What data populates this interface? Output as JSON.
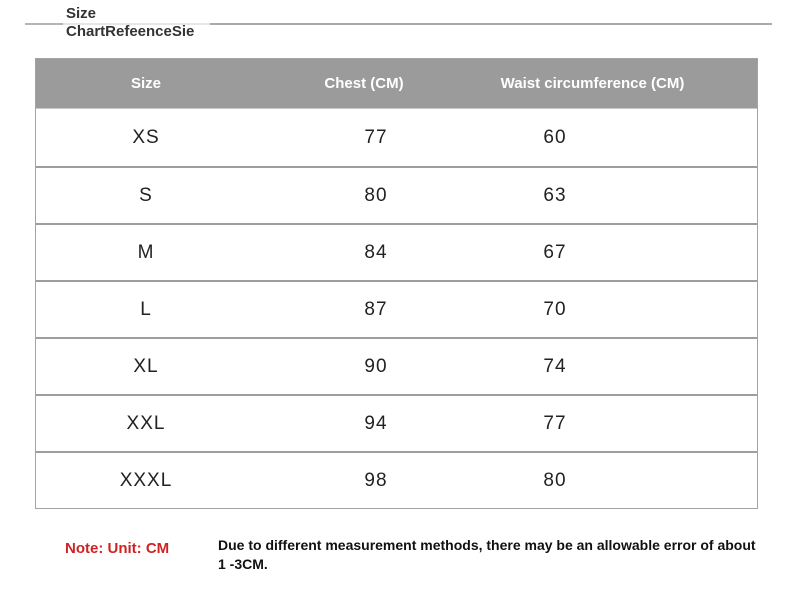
{
  "title": {
    "line1": "Size",
    "line2": "ChartRefeenceSie"
  },
  "table": {
    "headers": [
      "Size",
      "Chest (CM)",
      "Waist circumference (CM)"
    ],
    "rows": [
      {
        "size": "XS",
        "chest": "77",
        "waist": "60"
      },
      {
        "size": "S",
        "chest": "80",
        "waist": "63"
      },
      {
        "size": "M",
        "chest": "84",
        "waist": "67"
      },
      {
        "size": "L",
        "chest": "87",
        "waist": "70"
      },
      {
        "size": "XL",
        "chest": "90",
        "waist": "74"
      },
      {
        "size": "XXL",
        "chest": "94",
        "waist": "77"
      },
      {
        "size": "XXXL",
        "chest": "98",
        "waist": "80"
      }
    ]
  },
  "footer": {
    "note_label": "Note: Unit: CM",
    "note_text": "Due to different measurement methods, there may be an allowable error of about 1 -3CM."
  },
  "colors": {
    "header_bg": "#9b9b9b",
    "header_text": "#ffffff",
    "row_separator": "#9e9e9e",
    "note_red": "#cc2424",
    "body_text": "#222222",
    "title_text": "#333333"
  }
}
